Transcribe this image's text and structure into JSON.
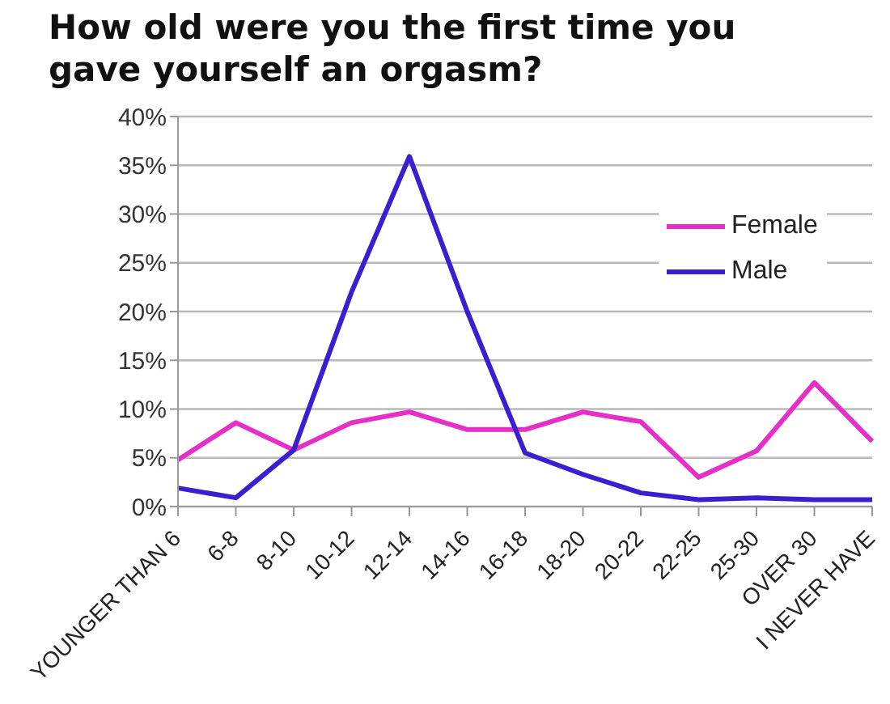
{
  "chart_data": {
    "type": "line",
    "title": "How old were you the first time you gave yourself an orgasm?",
    "categories": [
      "YOUNGER THAN 6",
      "6-8",
      "8-10",
      "10-12",
      "12-14",
      "14-16",
      "16-18",
      "18-20",
      "20-22",
      "22-25",
      "25-30",
      "OVER 30",
      "I NEVER HAVE"
    ],
    "series": [
      {
        "name": "Female",
        "color": "#e62ec8",
        "values": [
          4.8,
          8.6,
          5.8,
          8.6,
          9.7,
          7.9,
          7.9,
          9.7,
          8.7,
          3.0,
          5.7,
          12.7,
          6.7
        ]
      },
      {
        "name": "Male",
        "color": "#3a1fd1",
        "values": [
          1.9,
          0.9,
          5.8,
          22,
          35.9,
          20,
          5.5,
          3.3,
          1.4,
          0.7,
          0.9,
          0.7,
          0.7
        ]
      }
    ],
    "ylim": [
      0,
      40
    ],
    "yticks": [
      {
        "value": 0,
        "label": "0%"
      },
      {
        "value": 5,
        "label": "5%"
      },
      {
        "value": 10,
        "label": "10%"
      },
      {
        "value": 15,
        "label": "15%"
      },
      {
        "value": 20,
        "label": "20%"
      },
      {
        "value": 25,
        "label": "25%"
      },
      {
        "value": 30,
        "label": "30%"
      },
      {
        "value": 35,
        "label": "35%"
      },
      {
        "value": 40,
        "label": "40%"
      }
    ],
    "grid": "y",
    "legend": "top right",
    "line_style": "solid"
  }
}
